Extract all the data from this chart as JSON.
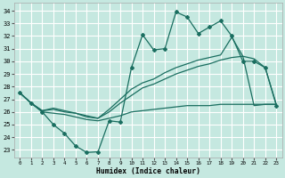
{
  "xlabel": "Humidex (Indice chaleur)",
  "background_color": "#c5e8e0",
  "grid_color": "#b0d8cc",
  "line_color": "#1a6e60",
  "x_ticks": [
    0,
    1,
    2,
    3,
    4,
    5,
    6,
    7,
    8,
    9,
    10,
    11,
    12,
    13,
    14,
    15,
    16,
    17,
    18,
    19,
    20,
    21,
    22,
    23
  ],
  "y_ticks": [
    23,
    24,
    25,
    26,
    27,
    28,
    29,
    30,
    31,
    32,
    33,
    34
  ],
  "xlim": [
    -0.5,
    23.5
  ],
  "ylim": [
    22.4,
    34.6
  ],
  "line_jagged_x": [
    0,
    1,
    2,
    3,
    4,
    5,
    6,
    7,
    8,
    9,
    10,
    11,
    12,
    13,
    14,
    15,
    16,
    17,
    18,
    19,
    20,
    21,
    22,
    23
  ],
  "line_jagged_y": [
    27.5,
    26.7,
    26.0,
    25.0,
    24.3,
    23.3,
    22.8,
    22.85,
    25.3,
    25.2,
    29.5,
    32.1,
    30.9,
    31.0,
    33.9,
    33.5,
    32.2,
    32.7,
    33.2,
    32.0,
    30.0,
    30.0,
    29.5,
    26.5
  ],
  "line_upper_x": [
    0,
    1,
    2,
    3,
    4,
    5,
    6,
    7,
    8,
    9,
    10,
    11,
    12,
    13,
    14,
    15,
    16,
    17,
    18,
    19,
    20,
    21,
    22,
    23
  ],
  "line_upper_y": [
    27.5,
    26.7,
    26.1,
    26.3,
    26.1,
    25.9,
    25.6,
    25.5,
    26.2,
    27.0,
    27.8,
    28.3,
    28.6,
    29.1,
    29.5,
    29.8,
    30.1,
    30.3,
    30.5,
    31.9,
    30.4,
    30.2,
    29.5,
    26.6
  ],
  "line_mid_x": [
    0,
    1,
    2,
    3,
    4,
    5,
    6,
    7,
    8,
    9,
    10,
    11,
    12,
    13,
    14,
    15,
    16,
    17,
    18,
    19,
    20,
    21,
    22,
    23
  ],
  "line_mid_y": [
    27.5,
    26.7,
    26.1,
    26.2,
    26.0,
    25.9,
    25.7,
    25.5,
    26.0,
    26.7,
    27.3,
    27.9,
    28.2,
    28.6,
    29.0,
    29.3,
    29.6,
    29.8,
    30.1,
    30.3,
    30.4,
    26.5,
    26.6,
    26.6
  ],
  "line_lower_x": [
    0,
    1,
    2,
    3,
    4,
    5,
    6,
    7,
    8,
    9,
    10,
    11,
    12,
    13,
    14,
    15,
    16,
    17,
    18,
    19,
    20,
    21,
    22,
    23
  ],
  "line_lower_y": [
    27.5,
    26.7,
    26.0,
    25.9,
    25.8,
    25.6,
    25.4,
    25.3,
    25.5,
    25.7,
    26.0,
    26.1,
    26.2,
    26.3,
    26.4,
    26.5,
    26.5,
    26.5,
    26.6,
    26.6,
    26.6,
    26.6,
    26.6,
    26.6
  ]
}
